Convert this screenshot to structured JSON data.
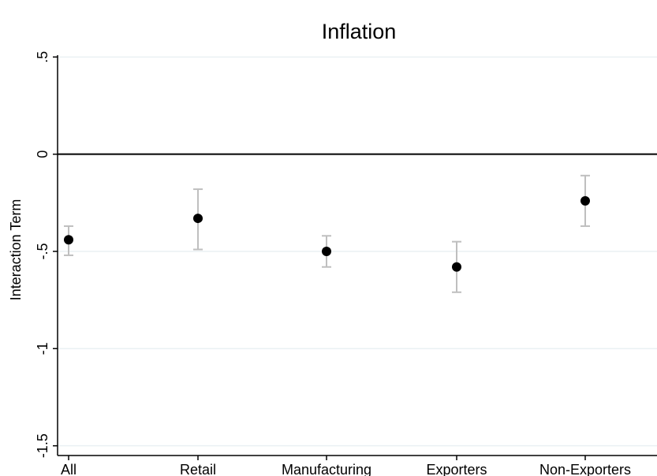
{
  "chart_data": {
    "type": "scatter",
    "title": "Inflation",
    "xlabel": "",
    "ylabel": "Interaction Term",
    "categories": [
      "All",
      "Retail",
      "Manufacturing",
      "Exporters",
      "Non-Exporters"
    ],
    "ylim": [
      -1.5,
      0.5
    ],
    "yticks": [
      ".5",
      "0",
      "-.5",
      "-1",
      "-1.5"
    ],
    "ytick_values": [
      0.5,
      0,
      -0.5,
      -1,
      -1.5
    ],
    "reference_line_y": 0,
    "grid": true,
    "series": [
      {
        "values": [
          -0.44,
          -0.33,
          -0.5,
          -0.58,
          -0.24
        ],
        "ci_low": [
          -0.52,
          -0.49,
          -0.58,
          -0.71,
          -0.37
        ],
        "ci_high": [
          -0.37,
          -0.18,
          -0.42,
          -0.45,
          -0.11
        ],
        "marker_color": "#000000",
        "ci_color": "#bfbfbf"
      }
    ],
    "colors": {
      "grid": "#eaf0f3",
      "axis": "#000000",
      "ci": "#bfbfbf",
      "marker": "#000000"
    }
  }
}
